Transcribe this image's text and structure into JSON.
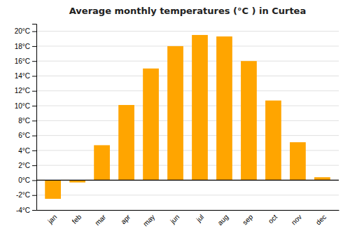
{
  "chart_data": {
    "type": "bar",
    "title": "Average monthly temperatures (°C ) in Curtea",
    "categories": [
      "jan",
      "feb",
      "mar",
      "apr",
      "may",
      "jun",
      "jul",
      "aug",
      "sep",
      "oct",
      "nov",
      "dec"
    ],
    "values": [
      -2.5,
      -0.3,
      4.7,
      10.1,
      15.0,
      18.0,
      19.5,
      19.3,
      16.0,
      10.7,
      5.1,
      0.4
    ],
    "color": "#FFA500",
    "ylim": [
      -4,
      21
    ],
    "yticks": [
      {
        "value": -4,
        "label": "-4°C"
      },
      {
        "value": -2,
        "label": "-2°C"
      },
      {
        "value": 0,
        "label": "0°C"
      },
      {
        "value": 2,
        "label": "2°C"
      },
      {
        "value": 4,
        "label": "4°C"
      },
      {
        "value": 6,
        "label": "6°C"
      },
      {
        "value": 8,
        "label": "8°C"
      },
      {
        "value": 10,
        "label": "10°C"
      },
      {
        "value": 12,
        "label": "12°C"
      },
      {
        "value": 14,
        "label": "14°C"
      },
      {
        "value": 16,
        "label": "16°C"
      },
      {
        "value": 18,
        "label": "18°C"
      },
      {
        "value": 20,
        "label": "20°C"
      }
    ],
    "grid": true
  }
}
